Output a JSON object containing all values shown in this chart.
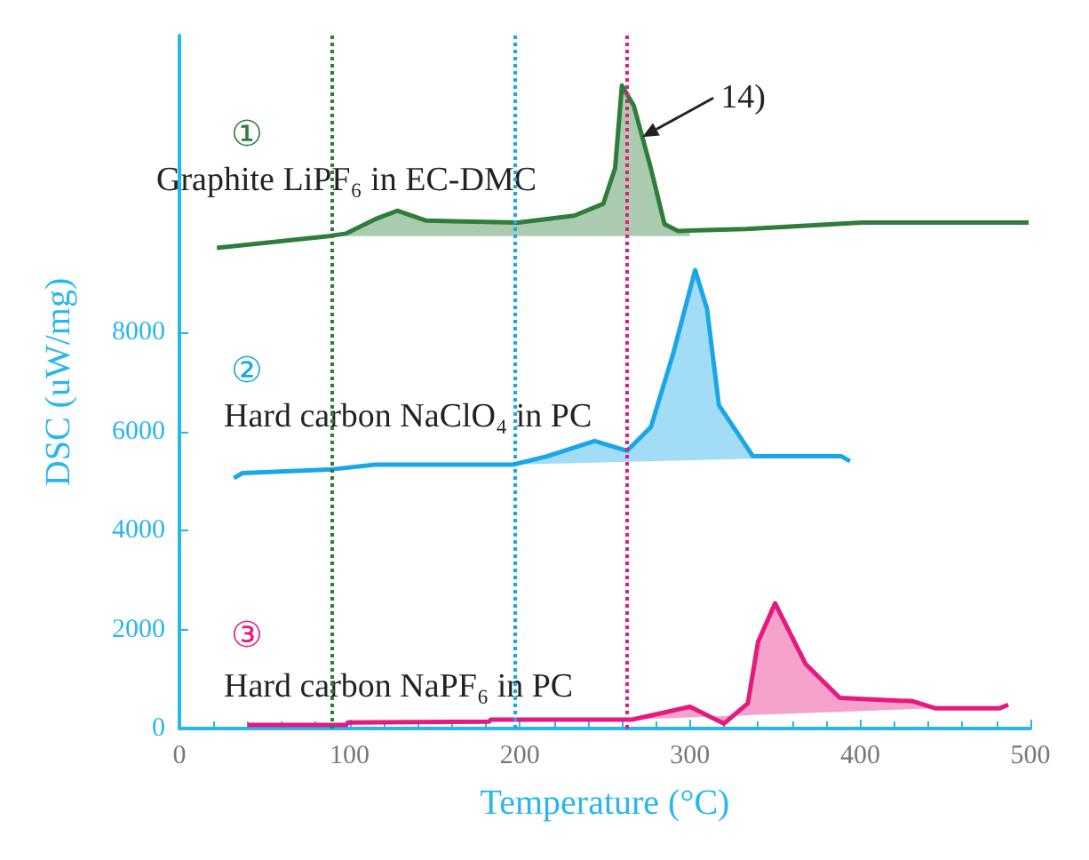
{
  "chart_data": {
    "type": "line",
    "xlabel": "Temperature (°C)",
    "ylabel": "DSC (uW/mg)",
    "xlim": [
      0,
      500
    ],
    "xticks": [
      0,
      100,
      200,
      300,
      400,
      500
    ],
    "ylim": [
      0,
      14000
    ],
    "yticks": [
      0,
      2000,
      4000,
      6000,
      8000
    ],
    "grid": false,
    "legend": false,
    "marker": "none",
    "line_style": "solid",
    "series": [
      {
        "name": "Graphite LiPF₆ in EC-DMC",
        "color": "#2e7d3a",
        "x": [
          22,
          88,
          98,
          115,
          128,
          145,
          199,
          232,
          249,
          256,
          260,
          267,
          277,
          285,
          293,
          300,
          333,
          401,
          499
        ],
        "values": [
          9710,
          9950,
          10000,
          10290,
          10460,
          10260,
          10220,
          10360,
          10600,
          11320,
          12990,
          12580,
          11320,
          10190,
          10050,
          10060,
          10090,
          10220,
          10220
        ],
        "lower": [
          null,
          null,
          9950,
          9950,
          9950,
          9950,
          9950,
          9950,
          9950,
          9950,
          9950,
          9950,
          9950,
          9950,
          9950,
          9950,
          null,
          null,
          null
        ],
        "upper": [
          null,
          null,
          10000,
          10290,
          10460,
          10260,
          10220,
          10360,
          10600,
          11320,
          12990,
          12580,
          11320,
          10190,
          10050,
          10060,
          null,
          null,
          null
        ]
      },
      {
        "name": "Hard carbon NaClO₄ in PC",
        "color": "#1aa7e8",
        "x": [
          32,
          37,
          88,
          115,
          196,
          216,
          244,
          263,
          277,
          290,
          303,
          310,
          317,
          337,
          374,
          389,
          394
        ],
        "values": [
          5060,
          5160,
          5230,
          5330,
          5330,
          5500,
          5810,
          5610,
          6090,
          7560,
          9260,
          8480,
          6530,
          5500,
          5500,
          5500,
          5400
        ],
        "lower": [
          null,
          null,
          null,
          null,
          5330,
          5350,
          5370,
          5390,
          5400,
          5410,
          5420,
          5430,
          5435,
          5450,
          null,
          null,
          null
        ],
        "upper": [
          null,
          null,
          null,
          null,
          5330,
          5500,
          5810,
          5610,
          6090,
          7560,
          9260,
          8480,
          6530,
          5500,
          null,
          null,
          null
        ]
      },
      {
        "name": "Hard carbon NaPF₆ in PC",
        "color": "#e6197f",
        "x": [
          40,
          98,
          99,
          182,
          183,
          266,
          300,
          320,
          334,
          340,
          350,
          368,
          388,
          431,
          444,
          482,
          487
        ],
        "values": [
          70,
          70,
          120,
          140,
          180,
          180,
          440,
          100,
          510,
          1750,
          2530,
          1300,
          620,
          550,
          410,
          410,
          480
        ],
        "lower": [
          null,
          null,
          null,
          null,
          null,
          180,
          224,
          250,
          268,
          276,
          289,
          312,
          338,
          393,
          410,
          null,
          null
        ],
        "upper": [
          null,
          null,
          null,
          null,
          null,
          180,
          440,
          100,
          510,
          1750,
          2530,
          1300,
          620,
          550,
          410,
          null,
          null
        ]
      }
    ],
    "ref_lines": [
      {
        "axis": "x",
        "value": 90,
        "color": "#2e7d3a",
        "line_style": "dotted"
      },
      {
        "axis": "x",
        "value": 197,
        "color": "#1aa7e8",
        "line_style": "dotted"
      },
      {
        "axis": "x",
        "value": 263,
        "color": "#e6197f",
        "line_style": "dotted"
      }
    ],
    "annotations": [
      "①",
      "②",
      "③",
      {
        "text": "14)",
        "x": 272,
        "y": 11950
      }
    ]
  }
}
